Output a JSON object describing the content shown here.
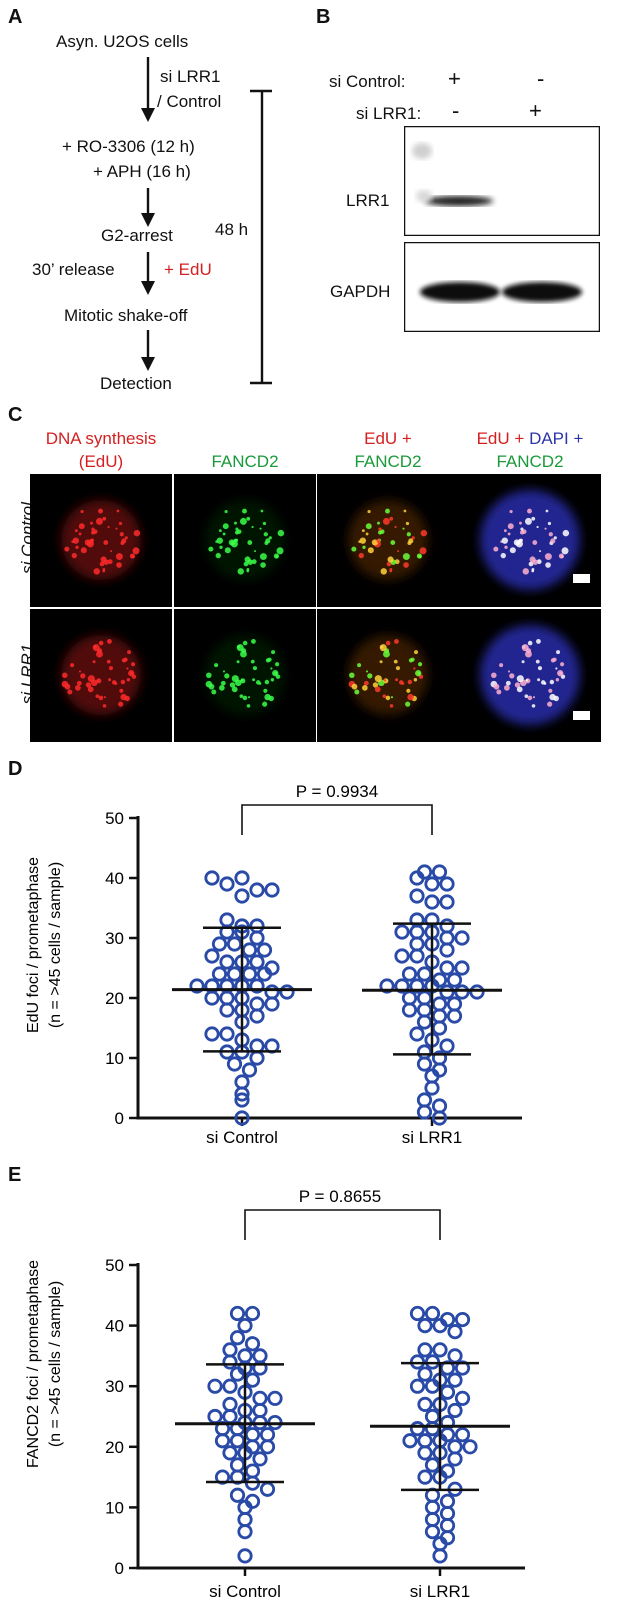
{
  "panel_labels": {
    "a": "A",
    "b": "B",
    "c": "C",
    "d": "D",
    "e": "E"
  },
  "panel_a": {
    "step1": "Asyn. U2OS cells",
    "transfection_line1": "si LRR1",
    "transfection_line2": "/ Control",
    "step2_line1": "+ RO-3306 (12 h)",
    "step2_line2": "+ APH (16 h)",
    "step3": "G2-arrest",
    "release": "30’ release",
    "edu": "+ EdU",
    "step4": "Mitotic shake-off",
    "step5": "Detection",
    "duration": "48 h",
    "colors": {
      "arrow": "#111111",
      "edu": "#d42020"
    }
  },
  "panel_b": {
    "row1_label": "si Control:",
    "row1_lane1": "+",
    "row1_lane2": "-",
    "row2_label": "si LRR1:",
    "row2_lane1": "-",
    "row2_lane2": "+",
    "blot1_label": "LRR1",
    "blot2_label": "GAPDH"
  },
  "panel_c": {
    "col1_line1": "DNA synthesis",
    "col1_line2": "(EdU)",
    "col2": "FANCD2",
    "col3_line1": "EdU +",
    "col3_line2": "FANCD2",
    "col4_part1": "EdU +",
    "col4_part2": "DAPI +",
    "col4_line2": "FANCD2",
    "row1": "si Control",
    "row2": "si LRR1",
    "colors": {
      "edu": "#d42020",
      "fancd2": "#1a9a3a",
      "dapi": "#2a36a8"
    }
  },
  "chart_data": [
    {
      "type": "scatter",
      "ylabel_line1": "EdU foci / prometaphase",
      "ylabel_line2": "(n = >45 cells / sample)",
      "categories": [
        "si Control",
        "si LRR1"
      ],
      "ylim": [
        0,
        50
      ],
      "yticks": [
        0,
        10,
        20,
        30,
        40,
        50
      ],
      "pvalue": "P = 0.9934",
      "marker_color": "#2a4aa8",
      "series": [
        {
          "name": "si Control",
          "mean": 21.4,
          "sd_low": 11.1,
          "sd_high": 31.7,
          "values": [
            40,
            39,
            40,
            37,
            38,
            38,
            33,
            32,
            32,
            31,
            31,
            30,
            29,
            29,
            28,
            28,
            27,
            26,
            26,
            26,
            25,
            24,
            24,
            24,
            24,
            22,
            22,
            22,
            22,
            22,
            21,
            21,
            20,
            20,
            20,
            19,
            19,
            18,
            18,
            17,
            16,
            14,
            14,
            13,
            12,
            12,
            11,
            11,
            10,
            9,
            8,
            6,
            4,
            3,
            0
          ]
        },
        {
          "name": "si LRR1",
          "mean": 21.3,
          "sd_low": 10.6,
          "sd_high": 32.4,
          "values": [
            41,
            41,
            40,
            39,
            39,
            37,
            36,
            36,
            33,
            33,
            32,
            31,
            31,
            31,
            30,
            30,
            29,
            29,
            28,
            27,
            27,
            26,
            25,
            25,
            24,
            24,
            23,
            23,
            22,
            22,
            22,
            22,
            21,
            21,
            21,
            20,
            20,
            19,
            19,
            18,
            18,
            17,
            17,
            16,
            15,
            14,
            13,
            12,
            11,
            10,
            9,
            8,
            7,
            5,
            3,
            2,
            1,
            0
          ]
        }
      ]
    },
    {
      "type": "scatter",
      "ylabel_line1": "FANCD2 foci / prometaphase",
      "ylabel_line2": "(n = >45 cells / sample)",
      "categories": [
        "si Control",
        "si LRR1"
      ],
      "ylim": [
        0,
        50
      ],
      "yticks": [
        0,
        10,
        20,
        30,
        40,
        50
      ],
      "pvalue": "P = 0.8655",
      "marker_color": "#2a4aa8",
      "series": [
        {
          "name": "si Control",
          "mean": 23.8,
          "sd_low": 14.2,
          "sd_high": 33.6,
          "values": [
            42,
            42,
            40,
            38,
            37,
            36,
            35,
            35,
            34,
            33,
            33,
            32,
            31,
            30,
            30,
            29,
            28,
            28,
            27,
            26,
            26,
            25,
            25,
            24,
            24,
            24,
            23,
            23,
            22,
            22,
            21,
            21,
            20,
            20,
            19,
            19,
            18,
            17,
            16,
            15,
            15,
            14,
            13,
            12,
            11,
            10,
            8,
            6,
            2
          ]
        },
        {
          "name": "si LRR1",
          "mean": 23.4,
          "sd_low": 12.9,
          "sd_high": 33.8,
          "values": [
            42,
            42,
            41,
            41,
            40,
            40,
            39,
            36,
            36,
            35,
            34,
            34,
            33,
            33,
            32,
            31,
            31,
            30,
            30,
            29,
            28,
            27,
            27,
            26,
            25,
            24,
            23,
            23,
            22,
            22,
            21,
            21,
            21,
            20,
            20,
            19,
            19,
            18,
            17,
            16,
            15,
            15,
            13,
            12,
            11,
            10,
            9,
            8,
            7,
            6,
            5,
            4,
            2
          ]
        }
      ]
    }
  ]
}
